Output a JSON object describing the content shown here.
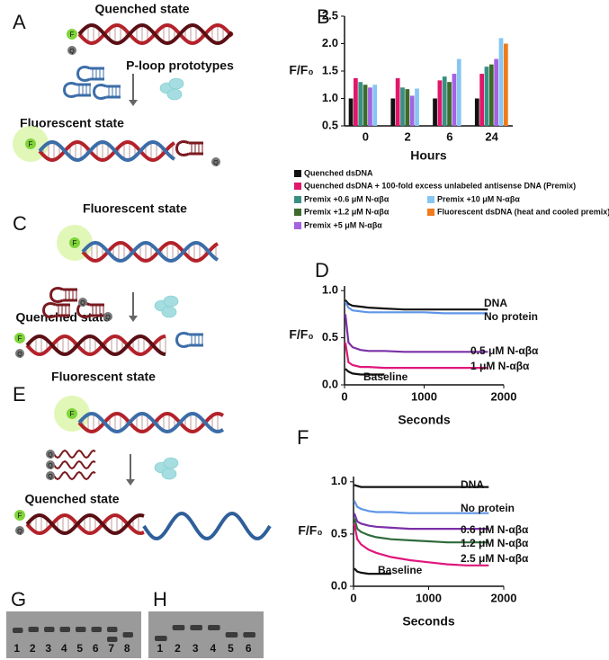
{
  "diagrams": {
    "A": {
      "letter": "A",
      "top_label": "Quenched state",
      "side_label": "P-loop prototypes",
      "bottom_label": "Fluorescent state"
    },
    "C": {
      "letter": "C",
      "top_label": "Fluorescent state",
      "bottom_label": "Quenched state"
    },
    "E": {
      "letter": "E",
      "top_label": "Fluorescent state",
      "bottom_label": "Quenched state"
    },
    "fluorophore": "F",
    "quencher": "Q"
  },
  "gels": {
    "G": {
      "letter": "G",
      "lanes": [
        "1",
        "2",
        "3",
        "4",
        "5",
        "6",
        "7",
        "8"
      ]
    },
    "H": {
      "letter": "H",
      "lanes": [
        "1",
        "2",
        "3",
        "4",
        "5",
        "6"
      ]
    }
  },
  "chart_data": [
    {
      "type": "bar",
      "panel_label": "B",
      "xlabel": "Hours",
      "ylabel": "F/F₀",
      "categories": [
        "0",
        "2",
        "6",
        "24"
      ],
      "ylim": [
        0.5,
        2.5
      ],
      "yticks": [
        0.5,
        {
          "value": 1,
          "label": "1.0"
        },
        1.5,
        {
          "value": 2,
          "label": "2.0"
        },
        2.5
      ],
      "series": [
        {
          "name": "Quenched dsDNA",
          "color": "#111111",
          "values": [
            1.0,
            1.0,
            1.0,
            1.0
          ]
        },
        {
          "name": "Quenched dsDNA + 100-fold excess unlabeled antisense DNA (Premix)",
          "color": "#e0176b",
          "values": [
            1.37,
            1.37,
            1.33,
            1.45
          ]
        },
        {
          "name": "Premix +0.6 μM N-αβα",
          "color": "#3a8f84",
          "values": [
            1.3,
            1.2,
            1.4,
            1.58
          ]
        },
        {
          "name": "Premix +1.2 μM N-αβα",
          "color": "#3c6b2c",
          "values": [
            1.25,
            1.17,
            1.3,
            1.62
          ]
        },
        {
          "name": "Premix +5 μM N-αβα",
          "color": "#a463e0",
          "values": [
            1.2,
            1.05,
            1.45,
            1.72
          ]
        },
        {
          "name": "Premix +10 μM N-αβα",
          "color": "#86c6f2",
          "values": [
            1.25,
            1.18,
            1.72,
            2.1
          ]
        },
        {
          "name": "Fluorescent dsDNA (heat and cooled premix)",
          "color": "#f07b1b",
          "values": [
            null,
            null,
            null,
            2.0
          ]
        }
      ]
    },
    {
      "type": "line",
      "panel_label": "D",
      "xlabel": "Seconds",
      "ylabel": "F/F₀",
      "xlim": [
        0,
        2000
      ],
      "xticks": [
        0,
        1000,
        2000
      ],
      "ylim": [
        0,
        1.05
      ],
      "yticks": [
        {
          "value": 0,
          "label": "0.0"
        },
        0.5,
        {
          "value": 1,
          "label": "1.0"
        }
      ],
      "x": [
        10,
        50,
        100,
        200,
        300,
        500,
        750,
        1000,
        1250,
        1500,
        1800
      ],
      "series": [
        {
          "name": "DNA",
          "color": "#111111",
          "values": [
            0.9,
            0.86,
            0.84,
            0.83,
            0.82,
            0.81,
            0.8,
            0.8,
            0.8,
            0.8,
            0.8
          ]
        },
        {
          "name": "No protein",
          "color": "#5f95e8",
          "values": [
            0.88,
            0.82,
            0.79,
            0.78,
            0.77,
            0.77,
            0.77,
            0.77,
            0.76,
            0.76,
            0.76
          ]
        },
        {
          "name": "0.5 μM N-αβα",
          "color": "#7b2fa8",
          "values": [
            0.75,
            0.45,
            0.4,
            0.37,
            0.36,
            0.36,
            0.35,
            0.35,
            0.35,
            0.35,
            0.35
          ]
        },
        {
          "name": "1 μM N-αβα",
          "color": "#e0177b",
          "values": [
            0.45,
            0.24,
            0.21,
            0.19,
            0.19,
            0.18,
            0.18,
            0.18,
            0.18,
            0.18,
            0.18
          ]
        },
        {
          "name": "Baseline",
          "color": "#111111",
          "values": [
            0.17,
            0.14,
            0.12,
            0.11,
            0.11,
            0.11,
            null,
            null,
            null,
            null,
            null
          ]
        }
      ]
    },
    {
      "type": "line",
      "panel_label": "F",
      "xlabel": "Seconds",
      "ylabel": "F/F₀",
      "xlim": [
        0,
        2000
      ],
      "xticks": [
        0,
        1000,
        2000
      ],
      "ylim": [
        0,
        1.05
      ],
      "yticks": [
        {
          "value": 0,
          "label": "0.0"
        },
        0.5,
        {
          "value": 1,
          "label": "1.0"
        }
      ],
      "x": [
        10,
        50,
        100,
        200,
        300,
        500,
        750,
        1000,
        1250,
        1500,
        1800
      ],
      "series": [
        {
          "name": "DNA",
          "color": "#111111",
          "values": [
            0.97,
            0.96,
            0.95,
            0.95,
            0.95,
            0.95,
            0.95,
            0.95,
            0.95,
            0.95,
            0.95
          ]
        },
        {
          "name": "No protein",
          "color": "#5f95e8",
          "values": [
            0.82,
            0.76,
            0.74,
            0.72,
            0.71,
            0.71,
            0.7,
            0.7,
            0.7,
            0.7,
            0.7
          ]
        },
        {
          "name": "0.6 μM N-αβα",
          "color": "#7b2fa8",
          "values": [
            0.7,
            0.62,
            0.6,
            0.58,
            0.57,
            0.56,
            0.55,
            0.55,
            0.55,
            0.55,
            0.55
          ]
        },
        {
          "name": "1.2 μM N-αβα",
          "color": "#2f6b3a",
          "values": [
            0.65,
            0.55,
            0.52,
            0.49,
            0.47,
            0.45,
            0.44,
            0.43,
            0.42,
            0.42,
            0.42
          ]
        },
        {
          "name": "2.5 μM N-αβα",
          "color": "#e0177b",
          "values": [
            0.6,
            0.45,
            0.4,
            0.35,
            0.32,
            0.28,
            0.25,
            0.23,
            0.21,
            0.2,
            0.2
          ]
        },
        {
          "name": "Baseline",
          "color": "#111111",
          "values": [
            0.17,
            0.14,
            0.13,
            0.12,
            0.12,
            0.12,
            null,
            null,
            null,
            null,
            null
          ]
        }
      ]
    }
  ]
}
